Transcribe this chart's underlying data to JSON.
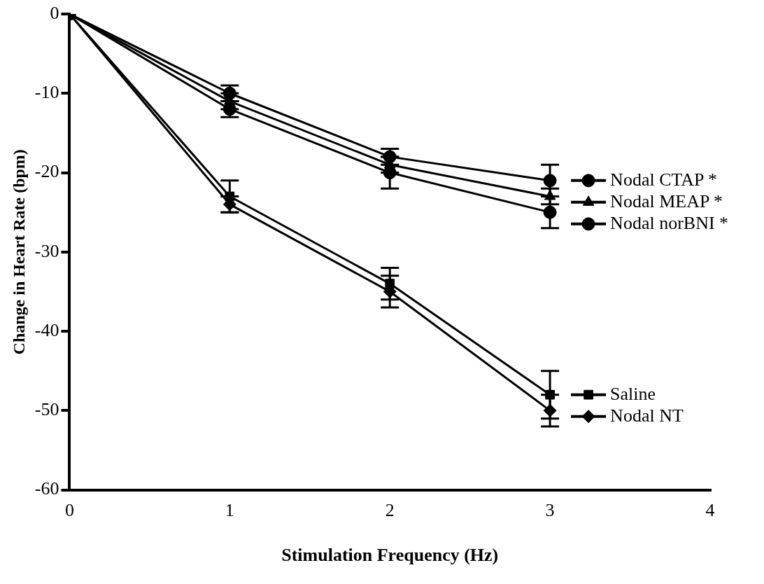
{
  "chart_data": {
    "type": "line",
    "xlabel": "Stimulation Frequency (Hz)",
    "ylabel": "Change in Heart Rate (bpm)",
    "x": [
      0,
      1,
      2,
      3
    ],
    "xlim": [
      0,
      4
    ],
    "xticks": [
      0,
      1,
      2,
      3,
      4
    ],
    "ylim": [
      -60,
      0
    ],
    "yticks": [
      -60,
      -50,
      -40,
      -30,
      -20,
      -10,
      0
    ],
    "grid": false,
    "legend": "right",
    "line_style": "solid",
    "series": [
      {
        "name": "Nodal CTAP *",
        "color": "#000000",
        "marker": "circle",
        "values": [
          0,
          -10,
          -18,
          -21
        ],
        "errors": [
          null,
          1,
          1,
          2
        ]
      },
      {
        "name": "Nodal MEAP *",
        "color": "#000000",
        "marker": "triangle",
        "values": [
          0,
          -11,
          -19,
          -23
        ],
        "errors": [
          null,
          1,
          1,
          1
        ]
      },
      {
        "name": "Nodal norBNI *",
        "color": "#000000",
        "marker": "circle",
        "values": [
          0,
          -12,
          -20,
          -25
        ],
        "errors": [
          null,
          1,
          2,
          2
        ]
      },
      {
        "name": "Saline",
        "color": "#000000",
        "marker": "square",
        "values": [
          0,
          -23,
          -34,
          -48
        ],
        "errors": [
          null,
          2,
          2,
          3
        ]
      },
      {
        "name": "Nodal NT",
        "color": "#000000",
        "marker": "diamond",
        "values": [
          0,
          -24,
          -35,
          -50
        ],
        "errors": [
          null,
          1,
          2,
          2
        ]
      }
    ]
  }
}
